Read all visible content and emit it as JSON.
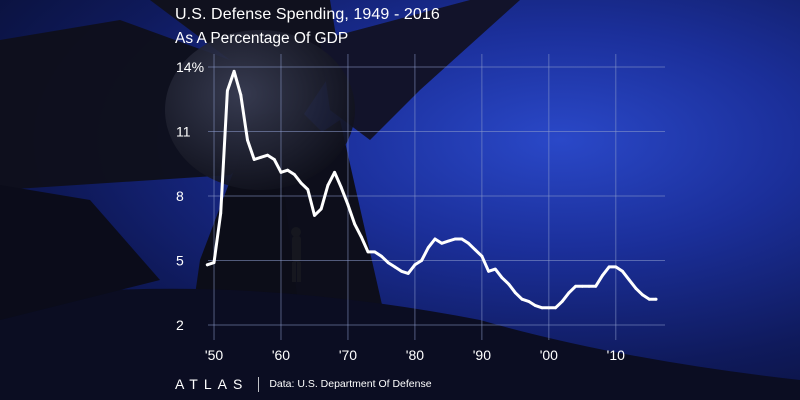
{
  "title": "U.S. Defense Spending, 1949 - 2016",
  "subtitle": "As A Percentage Of GDP",
  "brand": "ATLAS",
  "source": "Data: U.S. Department Of Defense",
  "colors": {
    "line": "#ffffff",
    "grid": "#8c9bcc"
  },
  "chart_data": {
    "type": "line",
    "title": "U.S. Defense Spending, 1949 - 2016",
    "subtitle": "As A Percentage Of GDP",
    "xlabel": "",
    "ylabel": "",
    "xlim": [
      1946,
      2020
    ],
    "ylim": [
      2,
      15
    ],
    "grid": true,
    "y_ticks": [
      14,
      11,
      8,
      5,
      2
    ],
    "y_tick_labels": [
      "14%",
      "11",
      "8",
      "5",
      "2"
    ],
    "x_ticks": [
      1950,
      1960,
      1970,
      1980,
      1990,
      2000,
      2010
    ],
    "x_tick_labels": [
      "'50",
      "'60",
      "'70",
      "'80",
      "'90",
      "'00",
      "'10"
    ],
    "series": [
      {
        "x": [
          1949,
          1950,
          1951,
          1952,
          1953,
          1954,
          1955,
          1956,
          1957,
          1958,
          1959,
          1960,
          1961,
          1962,
          1963,
          1964,
          1965,
          1966,
          1967,
          1968,
          1969,
          1970,
          1971,
          1972,
          1973,
          1974,
          1975,
          1976,
          1977,
          1978,
          1979,
          1980,
          1981,
          1982,
          1983,
          1984,
          1985,
          1986,
          1987,
          1988,
          1989,
          1990,
          1991,
          1992,
          1993,
          1994,
          1995,
          1996,
          1997,
          1998,
          1999,
          2000,
          2001,
          2002,
          2003,
          2004,
          2005,
          2006,
          2007,
          2008,
          2009,
          2010,
          2011,
          2012,
          2013,
          2014,
          2015,
          2016
        ],
        "y": [
          4.8,
          4.9,
          7.2,
          12.9,
          13.8,
          12.7,
          10.6,
          9.7,
          9.8,
          9.9,
          9.7,
          9.1,
          9.2,
          9.0,
          8.6,
          8.3,
          7.1,
          7.4,
          8.5,
          9.1,
          8.4,
          7.6,
          6.7,
          6.1,
          5.4,
          5.4,
          5.2,
          4.9,
          4.7,
          4.5,
          4.4,
          4.8,
          5.0,
          5.6,
          6.0,
          5.8,
          5.9,
          6.0,
          6.0,
          5.8,
          5.5,
          5.2,
          4.5,
          4.6,
          4.2,
          3.9,
          3.5,
          3.2,
          3.1,
          2.9,
          2.8,
          2.8,
          2.8,
          3.1,
          3.5,
          3.8,
          3.8,
          3.8,
          3.8,
          4.3,
          4.7,
          4.7,
          4.5,
          4.1,
          3.7,
          3.4,
          3.2,
          3.2
        ]
      }
    ]
  }
}
